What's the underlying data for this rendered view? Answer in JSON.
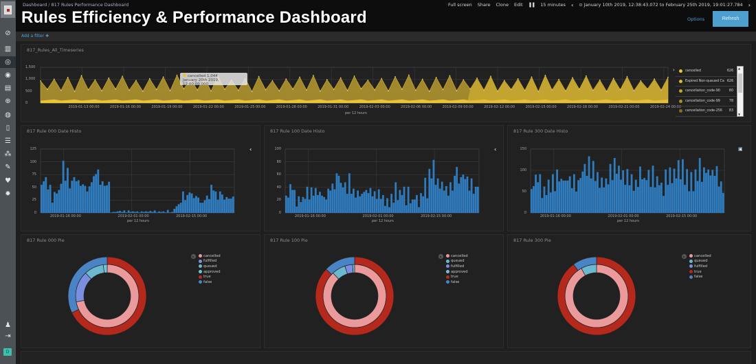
{
  "header": {
    "breadcrumb": [
      "Dashboard",
      "817 Rules Performance Dashboard"
    ],
    "title": "Rules Efficiency & Performance Dashboard",
    "menu": {
      "full_screen": "Full screen",
      "share": "Share",
      "clone": "Clone",
      "edit": "Edit",
      "refresh_interval": "15 minutes",
      "time_range": "January 10th 2019, 12:38:43.072 to February 25th 2019, 19:01:27.784"
    },
    "options_label": "Options",
    "refresh_label": "Refresh"
  },
  "filter_bar": {
    "add_filter": "Add a filter"
  },
  "sidebar": {
    "items": [
      "discover-icon",
      "visualize-icon",
      "dashboard-icon",
      "timelion-icon",
      "canvas-icon",
      "maps-icon",
      "infrastructure-icon",
      "logs-icon",
      "apm-icon",
      "uptime-icon",
      "dev-tools-icon",
      "monitoring-icon",
      "management-icon"
    ],
    "bottom": [
      "user-icon",
      "logout-icon"
    ],
    "space_badge": "D"
  },
  "timeseries": {
    "title": "817_Rules_All_Timeseries",
    "y_ticks": [
      "1,500",
      "1,000",
      "500",
      "0"
    ],
    "x_ticks": [
      "2019-01-13 00:00",
      "2019-01-16 00:00",
      "2019-01-19 00:00",
      "2019-01-22 00:00",
      "2019-01-25 00:00",
      "2019-01-28 00:00",
      "2019-01-31 00:00",
      "2019-02-03 00:00",
      "2019-02-06 00:00",
      "2019-02-09 00:00",
      "2019-02-12 00:00",
      "2019-02-15 00:00",
      "2019-02-18 00:00",
      "2019-02-21 00:00",
      "2019-02-24 00:00"
    ],
    "x_label": "per 12 hours",
    "tooltip": {
      "series": "cancelled",
      "value": "1,044",
      "time": "January 20th 2019, 12:00:00.000"
    },
    "legend": [
      {
        "label": "cancelled",
        "value": "626",
        "color": "#e8c33b"
      },
      {
        "label": "Expired Non-queued Ca",
        "value": "626",
        "color": "#e0b930"
      },
      {
        "label": "cancellation_code-90",
        "value": "80",
        "color": "#c9a02a"
      },
      {
        "label": "cancellation_code-99",
        "value": "78",
        "color": "#b08a25"
      },
      {
        "label": "cancellation_code-256",
        "value": "83",
        "color": "#8a6d20"
      }
    ],
    "colors": {
      "area_main": "#b89a2e",
      "area_light": "#e8c33b"
    }
  },
  "histograms": [
    {
      "title": "817 Rule 000 Date Histo",
      "y_ticks": [
        "125",
        "100",
        "75",
        "50",
        "25",
        "0"
      ],
      "y_max": 125,
      "x_ticks": [
        "2019-01-16 00:00",
        "2019-02-01 00:00",
        "2019-02-15 00:00"
      ],
      "x_label": "per 12 hours",
      "values": [
        55,
        62,
        70,
        46,
        55,
        20,
        41,
        38,
        45,
        57,
        102,
        63,
        88,
        48,
        63,
        70,
        62,
        64,
        53,
        56,
        53,
        42,
        52,
        60,
        72,
        76,
        85,
        55,
        62,
        53,
        54,
        61,
        1,
        2,
        2,
        3,
        4,
        2,
        5,
        1,
        5,
        2,
        3,
        2,
        3,
        1,
        3,
        2,
        3,
        2,
        4,
        2,
        5,
        1,
        3,
        2,
        3,
        1,
        6,
        1,
        2,
        8,
        13,
        17,
        20,
        42,
        25,
        35,
        40,
        38,
        29,
        33,
        30,
        20,
        20,
        25,
        34,
        27,
        55,
        44,
        42,
        26,
        42,
        36,
        26,
        31,
        28,
        28,
        32
      ]
    },
    {
      "title": "817 Rule 100 Date Histo",
      "y_ticks": [
        "100",
        "80",
        "60",
        "40",
        "20",
        "0"
      ],
      "y_max": 100,
      "x_ticks": [
        "2019-01-16 00:00",
        "2019-02-01 00:00",
        "2019-02-15 00:00"
      ],
      "x_label": "per 12 hours",
      "values": [
        27,
        24,
        45,
        36,
        36,
        10,
        26,
        17,
        25,
        22,
        41,
        21,
        40,
        27,
        39,
        28,
        33,
        27,
        25,
        21,
        38,
        35,
        46,
        37,
        62,
        58,
        47,
        40,
        48,
        30,
        62,
        30,
        38,
        24,
        35,
        26,
        30,
        33,
        36,
        31,
        39,
        26,
        34,
        22,
        37,
        22,
        28,
        11,
        23,
        9,
        30,
        16,
        48,
        20,
        36,
        28,
        41,
        12,
        41,
        15,
        21,
        21,
        28,
        9,
        31,
        26,
        55,
        23,
        69,
        54,
        83,
        44,
        54,
        38,
        49,
        35,
        42,
        27,
        48,
        35,
        58,
        72,
        46,
        56,
        60,
        53,
        57,
        35,
        54,
        30,
        41,
        41
      ]
    },
    {
      "title": "817 Rule 300 Date Histo",
      "y_ticks": [
        "150",
        "100",
        "50",
        "0"
      ],
      "y_max": 150,
      "x_ticks": [
        "2019-01-16 00:00",
        "2019-02-01 00:00",
        "2019-02-15 00:00"
      ],
      "x_label": "per 12 hours",
      "values": [
        56,
        63,
        90,
        72,
        91,
        35,
        62,
        42,
        78,
        48,
        91,
        51,
        102,
        74,
        80,
        76,
        76,
        76,
        86,
        58,
        91,
        50,
        77,
        82,
        97,
        115,
        87,
        133,
        81,
        122,
        75,
        96,
        59,
        83,
        60,
        81,
        67,
        115,
        77,
        129,
        92,
        111,
        78,
        100,
        66,
        103,
        65,
        91,
        52,
        78,
        61,
        109,
        79,
        82,
        77,
        101,
        61,
        111,
        60,
        86,
        65,
        71,
        40,
        102,
        66,
        107,
        70,
        104,
        81,
        124,
        79,
        126,
        66,
        103,
        51,
        96,
        51,
        102,
        75,
        129,
        73,
        107,
        94,
        102,
        88,
        101,
        87,
        110,
        62,
        74,
        47
      ]
    }
  ],
  "pies": [
    {
      "title": "817 Rule 000 Pie",
      "legend": [
        {
          "label": "cancelled",
          "color": "#ea9a9a"
        },
        {
          "label": "fulfilled",
          "color": "#7b8fe0"
        },
        {
          "label": "queued",
          "color": "#6cb8cf"
        },
        {
          "label": "approved",
          "color": "#70c4d8"
        },
        {
          "label": "true",
          "color": "#b5281c"
        },
        {
          "label": "false",
          "color": "#4a84c4"
        }
      ],
      "inner": [
        {
          "label": "cancelled",
          "value": 72,
          "color": "#ea9a9a"
        },
        {
          "label": "fulfilled",
          "value": 16,
          "color": "#7b8fe0"
        },
        {
          "label": "queued",
          "value": 10,
          "color": "#6cb8cf"
        },
        {
          "label": "approved",
          "value": 2,
          "color": "#70c4d8"
        }
      ],
      "outer": [
        {
          "label": "true",
          "value": 68,
          "color": "#b5281c"
        },
        {
          "label": "false",
          "value": 32,
          "color": "#4a84c4"
        }
      ]
    },
    {
      "title": "817 Rule 100 Pie",
      "legend": [
        {
          "label": "cancelled",
          "color": "#ea9a9a"
        },
        {
          "label": "queued",
          "color": "#6cb8cf"
        },
        {
          "label": "fulfilled",
          "color": "#7b8fe0"
        },
        {
          "label": "approved",
          "color": "#70c4d8"
        },
        {
          "label": "true",
          "color": "#b5281c"
        },
        {
          "label": "false",
          "color": "#4a84c4"
        }
      ],
      "inner": [
        {
          "label": "cancelled",
          "value": 88,
          "color": "#ea9a9a"
        },
        {
          "label": "queued",
          "value": 7,
          "color": "#6cb8cf"
        },
        {
          "label": "fulfilled",
          "value": 4,
          "color": "#7b8fe0"
        },
        {
          "label": "approved",
          "value": 1,
          "color": "#70c4d8"
        }
      ],
      "outer": [
        {
          "label": "true",
          "value": 87,
          "color": "#b5281c"
        },
        {
          "label": "false",
          "value": 13,
          "color": "#4a84c4"
        }
      ]
    },
    {
      "title": "817 Rule 300 Pie",
      "legend": [
        {
          "label": "cancelled",
          "color": "#ea9a9a"
        },
        {
          "label": "queued",
          "color": "#6cb8cf"
        },
        {
          "label": "fulfilled",
          "color": "#7b8fe0"
        },
        {
          "label": "true",
          "color": "#b5281c"
        },
        {
          "label": "false",
          "color": "#4a84c4"
        }
      ],
      "inner": [
        {
          "label": "cancelled",
          "value": 92,
          "color": "#ea9a9a"
        },
        {
          "label": "queued",
          "value": 8,
          "color": "#6cb8cf"
        }
      ],
      "outer": [
        {
          "label": "true",
          "value": 90,
          "color": "#b5281c"
        },
        {
          "label": "false",
          "value": 10,
          "color": "#4a84c4"
        }
      ]
    }
  ]
}
